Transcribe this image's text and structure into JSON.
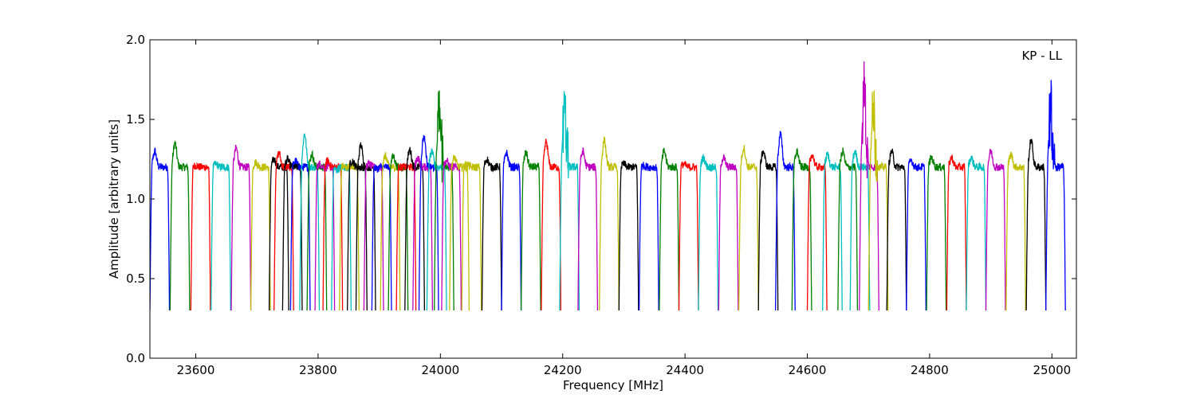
{
  "chart_data": {
    "type": "line",
    "title": "",
    "xlabel": "Frequency [MHz]",
    "ylabel": "Amplitude [arbitrary units]",
    "xlim": [
      23525,
      25040
    ],
    "ylim": [
      0.0,
      2.0
    ],
    "xticks": [
      23600,
      23800,
      24000,
      24200,
      24400,
      24600,
      24800,
      25000
    ],
    "yticks": [
      0.0,
      0.5,
      1.0,
      1.5,
      2.0
    ],
    "ytick_labels": [
      "0.0",
      "0.5",
      "1.0",
      "1.5",
      "2.0"
    ],
    "grid": false,
    "annotation": "KP - LL",
    "annotation_position": "top-right",
    "band_pattern": {
      "channel_width_mhz": 32,
      "min_amplitude": 0.3,
      "plateau_amplitude": 1.2,
      "colors": [
        "#0000ff",
        "#008000",
        "#ff0000",
        "#00bfbf",
        "#bf00bf",
        "#bfbf00",
        "#000000"
      ]
    },
    "series": [
      {
        "start": 23525,
        "color": "#0000ff",
        "peak": 1.3
      },
      {
        "start": 23558,
        "color": "#008000",
        "peak": 1.35
      },
      {
        "start": 23592,
        "color": "#ff0000",
        "peak": 1.21
      },
      {
        "start": 23625,
        "color": "#00bfbf",
        "peak": 1.22
      },
      {
        "start": 23658,
        "color": "#bf00bf",
        "peak": 1.32
      },
      {
        "start": 23690,
        "color": "#bfbf00",
        "peak": 1.23
      },
      {
        "start": 23720,
        "color": "#000000",
        "peak": 1.25
      },
      {
        "start": 23728,
        "color": "#ff0000",
        "peak": 1.29
      },
      {
        "start": 23742,
        "color": "#000000",
        "peak": 1.25
      },
      {
        "start": 23755,
        "color": "#0000ff",
        "peak": 1.24
      },
      {
        "start": 23770,
        "color": "#00bfbf",
        "peak": 1.41
      },
      {
        "start": 23782,
        "color": "#008000",
        "peak": 1.28
      },
      {
        "start": 23795,
        "color": "#bf00bf",
        "peak": 1.22
      },
      {
        "start": 23808,
        "color": "#ff0000",
        "peak": 1.24
      },
      {
        "start": 23822,
        "color": "#00bfbf",
        "peak": 1.18
      },
      {
        "start": 23835,
        "color": "#bfbf00",
        "peak": 1.2
      },
      {
        "start": 23848,
        "color": "#000000",
        "peak": 1.24
      },
      {
        "start": 23862,
        "color": "#000000",
        "peak": 1.34
      },
      {
        "start": 23875,
        "color": "#bf00bf",
        "peak": 1.22
      },
      {
        "start": 23888,
        "color": "#0000ff",
        "peak": 1.19
      },
      {
        "start": 23902,
        "color": "#bfbf00",
        "peak": 1.27
      },
      {
        "start": 23915,
        "color": "#008000",
        "peak": 1.27
      },
      {
        "start": 23928,
        "color": "#ff0000",
        "peak": 1.2
      },
      {
        "start": 23942,
        "color": "#000000",
        "peak": 1.31
      },
      {
        "start": 23955,
        "color": "#bf00bf",
        "peak": 1.26
      },
      {
        "start": 23965,
        "color": "#0000ff",
        "peak": 1.39
      },
      {
        "start": 23978,
        "color": "#00bfbf",
        "peak": 1.3
      },
      {
        "start": 23990,
        "color": "#008000",
        "peak": 1.56
      },
      {
        "start": 24002,
        "color": "#bf00bf",
        "peak": 1.24
      },
      {
        "start": 24015,
        "color": "#bfbf00",
        "peak": 1.26
      },
      {
        "start": 24035,
        "color": "#bfbf00",
        "peak": 1.22
      },
      {
        "start": 24068,
        "color": "#000000",
        "peak": 1.25
      },
      {
        "start": 24100,
        "color": "#0000ff",
        "peak": 1.29
      },
      {
        "start": 24132,
        "color": "#008000",
        "peak": 1.29
      },
      {
        "start": 24165,
        "color": "#ff0000",
        "peak": 1.36
      },
      {
        "start": 24195,
        "color": "#00bfbf",
        "peak": 1.56
      },
      {
        "start": 24225,
        "color": "#bf00bf",
        "peak": 1.3
      },
      {
        "start": 24260,
        "color": "#bfbf00",
        "peak": 1.37
      },
      {
        "start": 24292,
        "color": "#000000",
        "peak": 1.22
      },
      {
        "start": 24325,
        "color": "#0000ff",
        "peak": 1.21
      },
      {
        "start": 24358,
        "color": "#008000",
        "peak": 1.3
      },
      {
        "start": 24390,
        "color": "#ff0000",
        "peak": 1.22
      },
      {
        "start": 24422,
        "color": "#00bfbf",
        "peak": 1.26
      },
      {
        "start": 24455,
        "color": "#bf00bf",
        "peak": 1.26
      },
      {
        "start": 24488,
        "color": "#bfbf00",
        "peak": 1.32
      },
      {
        "start": 24520,
        "color": "#000000",
        "peak": 1.3
      },
      {
        "start": 24548,
        "color": "#0000ff",
        "peak": 1.41
      },
      {
        "start": 24575,
        "color": "#008000",
        "peak": 1.3
      },
      {
        "start": 24600,
        "color": "#ff0000",
        "peak": 1.28
      },
      {
        "start": 24625,
        "color": "#00bfbf",
        "peak": 1.28
      },
      {
        "start": 24650,
        "color": "#008000",
        "peak": 1.3
      },
      {
        "start": 24670,
        "color": "#00bfbf",
        "peak": 1.3
      },
      {
        "start": 24685,
        "color": "#bf00bf",
        "peak": 1.69
      },
      {
        "start": 24700,
        "color": "#bfbf00",
        "peak": 1.56
      },
      {
        "start": 24730,
        "color": "#000000",
        "peak": 1.3
      },
      {
        "start": 24762,
        "color": "#0000ff",
        "peak": 1.24
      },
      {
        "start": 24795,
        "color": "#008000",
        "peak": 1.26
      },
      {
        "start": 24828,
        "color": "#ff0000",
        "peak": 1.26
      },
      {
        "start": 24860,
        "color": "#00bfbf",
        "peak": 1.26
      },
      {
        "start": 24892,
        "color": "#bf00bf",
        "peak": 1.3
      },
      {
        "start": 24925,
        "color": "#bfbf00",
        "peak": 1.28
      },
      {
        "start": 24958,
        "color": "#000000",
        "peak": 1.37
      },
      {
        "start": 24990,
        "color": "#0000ff",
        "peak": 1.56
      }
    ]
  }
}
